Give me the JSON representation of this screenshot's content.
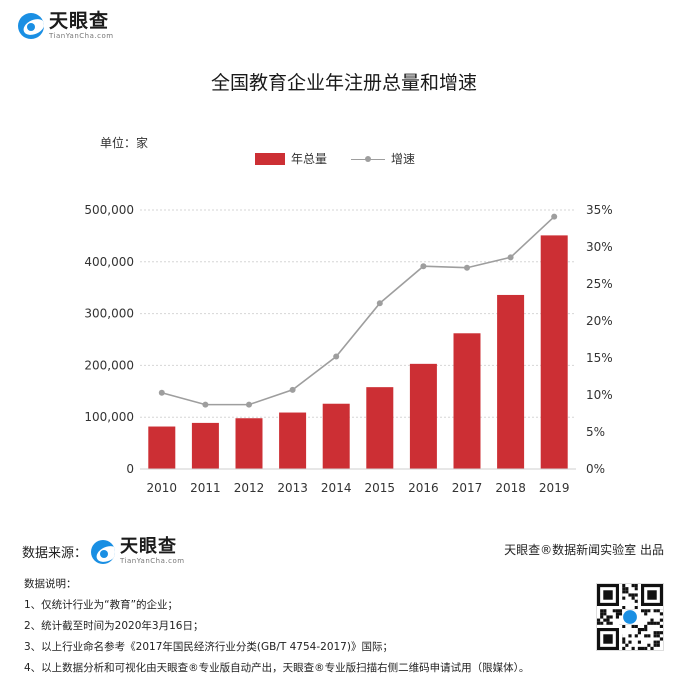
{
  "brand": {
    "name_cn": "天眼查",
    "name_en": "TianYanCha.com"
  },
  "title": "全国教育企业年注册总量和增速",
  "unit_label": "单位：家",
  "legend": {
    "bar": "年总量",
    "line": "增速"
  },
  "colors": {
    "bar": "#cc2f34",
    "line": "#9e9e9e",
    "brand": "#1a8fe3"
  },
  "chart_data": {
    "type": "bar",
    "categories": [
      "2010",
      "2011",
      "2012",
      "2013",
      "2014",
      "2015",
      "2016",
      "2017",
      "2018",
      "2019"
    ],
    "series": [
      {
        "name": "年总量",
        "type": "bar",
        "axis": "left",
        "values": [
          82000,
          89000,
          98000,
          109000,
          126000,
          158000,
          203000,
          262000,
          336000,
          451000
        ]
      },
      {
        "name": "增速",
        "type": "line",
        "axis": "right",
        "values": [
          10.3,
          8.7,
          8.7,
          10.7,
          15.2,
          22.4,
          27.4,
          27.2,
          28.6,
          34.1
        ]
      }
    ],
    "y_left": {
      "ticks": [
        "0",
        "100,000",
        "200,000",
        "300,000",
        "400,000",
        "500,000"
      ],
      "range": [
        0,
        500000
      ]
    },
    "y_right": {
      "ticks": [
        "0%",
        "5%",
        "10%",
        "15%",
        "20%",
        "25%",
        "30%",
        "35%"
      ],
      "range": [
        0,
        35
      ]
    },
    "grid": "horizontal-dotted",
    "legend_position": "top-center"
  },
  "footer": {
    "source_label": "数据来源：",
    "credit": "天眼查®数据新闻实验室 出品",
    "notes_title": "数据说明：",
    "notes": [
      "1、仅统计行业为“教育”的企业；",
      "2、统计截至时间为2020年3月16日；",
      "3、以上行业命名参考《2017年国民经济行业分类(GB/T 4754-2017)》国际；",
      "4、以上数据分析和可视化由天眼查®专业版自动产出，天眼查®专业版扫描右侧二维码申请试用（限媒体）。"
    ]
  }
}
